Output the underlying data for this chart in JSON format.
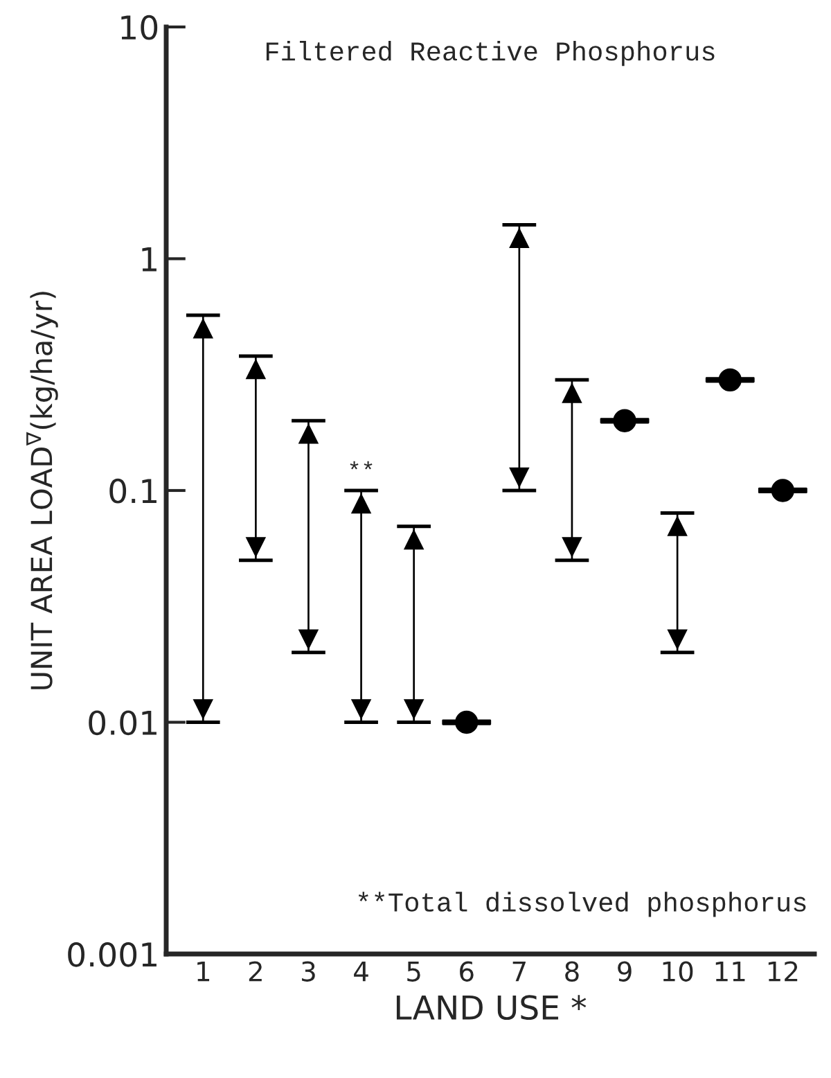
{
  "chart_data": {
    "type": "bar",
    "title": "Filtered Reactive Phosphorus",
    "xlabel": "LAND USE *",
    "ylabel": "UNIT AREA LOAD$^{∇}$(kg/ha/yr)",
    "categories": [
      "1",
      "2",
      "3",
      "4",
      "5",
      "6",
      "7",
      "8",
      "9",
      "10",
      "11",
      "12"
    ],
    "series": [
      {
        "color": "#000000",
        "base": [
          0.01,
          0.05,
          0.02,
          0.01,
          0.01,
          null,
          0.1,
          0.05,
          null,
          0.02,
          null,
          null
        ],
        "values": [
          0.56,
          0.33,
          0.18,
          0.09,
          0.06,
          null,
          1.3,
          0.25,
          null,
          0.06,
          null,
          null
        ]
      },
      {
        "type": "scatter",
        "color": "#000000",
        "marker": "circle",
        "x": [
          "6",
          "9",
          "11",
          "12"
        ],
        "values": [
          0.01,
          0.2,
          0.3,
          0.1
        ]
      }
    ],
    "log": "y",
    "ylim": [
      0.001,
      10
    ],
    "yticks": [
      0.001,
      0.01,
      0.1,
      1,
      10
    ],
    "grid": false,
    "legend": false,
    "annotations": [
      {
        "text": "**",
        "x": "4",
        "y": 0.1
      },
      "**Total dissolved phosphorus"
    ]
  }
}
